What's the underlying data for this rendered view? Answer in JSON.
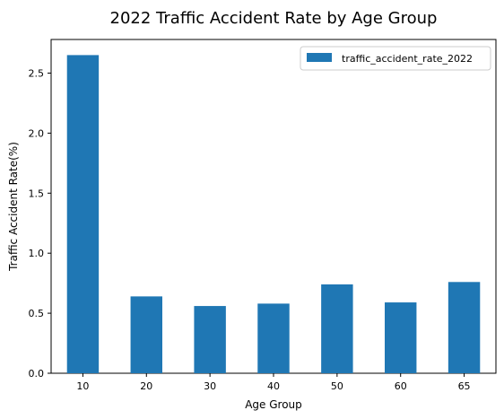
{
  "chart_data": {
    "type": "bar",
    "title": "2022 Traffic Accident Rate by Age Group",
    "xlabel": "Age Group",
    "ylabel": "Traffic Accident Rate(%)",
    "categories": [
      "10",
      "20",
      "30",
      "40",
      "50",
      "60",
      "65"
    ],
    "series": [
      {
        "name": "traffic_accident_rate_2022",
        "values": [
          2.65,
          0.64,
          0.56,
          0.58,
          0.74,
          0.59,
          0.76
        ],
        "color": "#1f77b4"
      }
    ],
    "ylim": [
      0,
      2.78
    ],
    "yticks": [
      0.0,
      0.5,
      1.0,
      1.5,
      2.0,
      2.5
    ],
    "ytick_labels": [
      "0.0",
      "0.5",
      "1.0",
      "1.5",
      "2.0",
      "2.5"
    ],
    "legend_position": "top-right",
    "grid": false
  }
}
